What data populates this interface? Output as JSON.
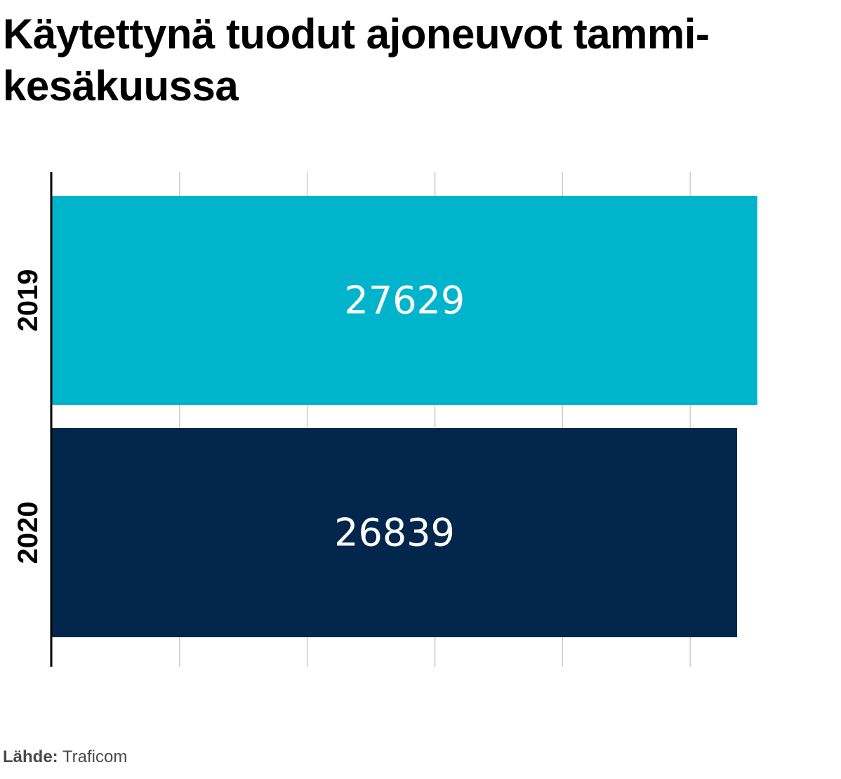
{
  "chart_data": {
    "type": "bar",
    "orientation": "horizontal",
    "title": "Käytettynä tuodut ajoneuvot tammi-kesäkuussa",
    "categories": [
      "2019",
      "2020"
    ],
    "values": [
      27629,
      26839
    ],
    "colors": [
      "#00b4cb",
      "#03264d"
    ],
    "data_labels": [
      "27629",
      "26839"
    ],
    "xlim": [
      0,
      30000
    ],
    "gridlines_x": [
      5000,
      10000,
      15000,
      20000,
      25000
    ],
    "x_tick_labels_shown": false,
    "grid": true,
    "legend": "none"
  },
  "source": {
    "label": "Lähde:",
    "value": "Traficom"
  },
  "colors": {
    "grid": "#c8cdd0",
    "axis": "#000000",
    "data_label_text": "#ffffff",
    "source_text": "#4a4a4a"
  }
}
